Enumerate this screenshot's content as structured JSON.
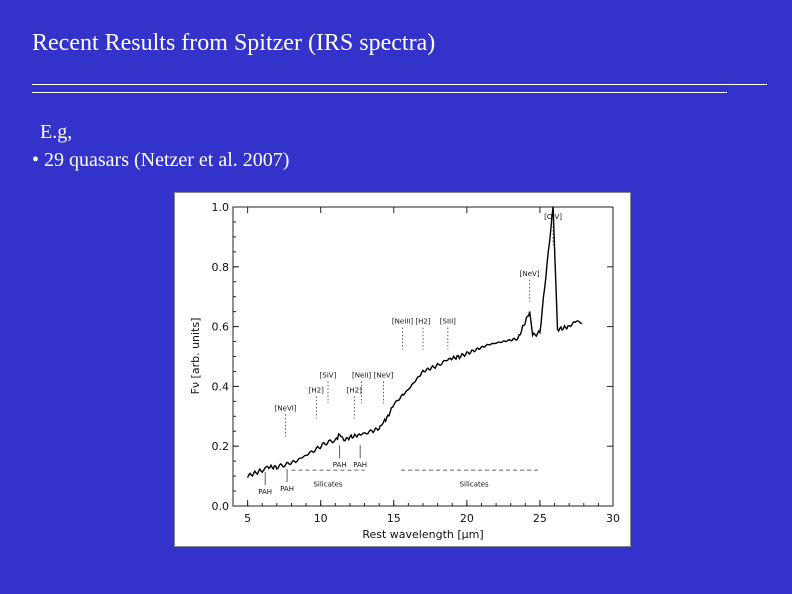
{
  "slide": {
    "title": "Recent Results from Spitzer (IRS spectra)",
    "body_lines": [
      "E.g,",
      "• 29 quasars (Netzer et al. 2007)"
    ]
  },
  "chart_data": {
    "type": "line",
    "xlabel": "Rest wavelength [μm]",
    "ylabel": "Fν [arb. units]",
    "xlim": [
      4,
      30
    ],
    "ylim": [
      0,
      1.0
    ],
    "x_ticks": [
      "5",
      "10",
      "15",
      "20",
      "25",
      "30"
    ],
    "y_ticks": [
      "0.0",
      "0.2",
      "0.4",
      "0.6",
      "0.8",
      "1.0"
    ],
    "series": [
      {
        "x": [
          5.0,
          6.0,
          6.2,
          7.0,
          7.7,
          8.3,
          9.0,
          9.7,
          10.3,
          11.0,
          11.3,
          11.6,
          12.0,
          12.8,
          13.5,
          14.0,
          14.3,
          14.6,
          15.0,
          15.6,
          16.0,
          16.5,
          17.0,
          18.0,
          18.7,
          19.5,
          20.5,
          21.5,
          22.5,
          23.5,
          24.3,
          24.5,
          25.0,
          25.9,
          26.2,
          27.0,
          27.5,
          27.9
        ],
        "y": [
          0.1,
          0.12,
          0.13,
          0.13,
          0.14,
          0.15,
          0.17,
          0.19,
          0.21,
          0.22,
          0.24,
          0.22,
          0.23,
          0.24,
          0.25,
          0.26,
          0.28,
          0.3,
          0.34,
          0.37,
          0.39,
          0.42,
          0.45,
          0.47,
          0.49,
          0.5,
          0.52,
          0.54,
          0.55,
          0.56,
          0.65,
          0.57,
          0.58,
          1.0,
          0.59,
          0.6,
          0.62,
          0.61
        ]
      }
    ],
    "line_labels": [
      {
        "text": "[OIV]",
        "x": 25.9,
        "y": 0.96
      },
      {
        "text": "[NeV]",
        "x": 24.3,
        "y": 0.77
      },
      {
        "text": "[NeIII]",
        "x": 15.6,
        "y": 0.61
      },
      {
        "text": "[H2]",
        "x": 17.0,
        "y": 0.61
      },
      {
        "text": "[SIII]",
        "x": 18.7,
        "y": 0.61
      },
      {
        "text": "[SiV]",
        "x": 10.5,
        "y": 0.43
      },
      {
        "text": "[NeII]",
        "x": 12.8,
        "y": 0.43
      },
      {
        "text": "[NeV]",
        "x": 14.3,
        "y": 0.43
      },
      {
        "text": "[H2]",
        "x": 9.7,
        "y": 0.38
      },
      {
        "text": "[H2]",
        "x": 12.3,
        "y": 0.38
      },
      {
        "text": "[NeVI]",
        "x": 7.6,
        "y": 0.32
      }
    ],
    "feature_labels": [
      {
        "text": "PAH",
        "x": 6.2,
        "y": 0.04
      },
      {
        "text": "PAH",
        "x": 7.7,
        "y": 0.05
      },
      {
        "text": "PAH",
        "x": 11.3,
        "y": 0.13
      },
      {
        "text": "PAH",
        "x": 12.7,
        "y": 0.13
      },
      {
        "text": "Silicates",
        "x": 10.5,
        "y": 0.065
      },
      {
        "text": "Silicates",
        "x": 20.5,
        "y": 0.065
      }
    ],
    "silicate_ranges": [
      [
        8.0,
        13.0
      ],
      [
        15.5,
        25.0
      ]
    ]
  }
}
